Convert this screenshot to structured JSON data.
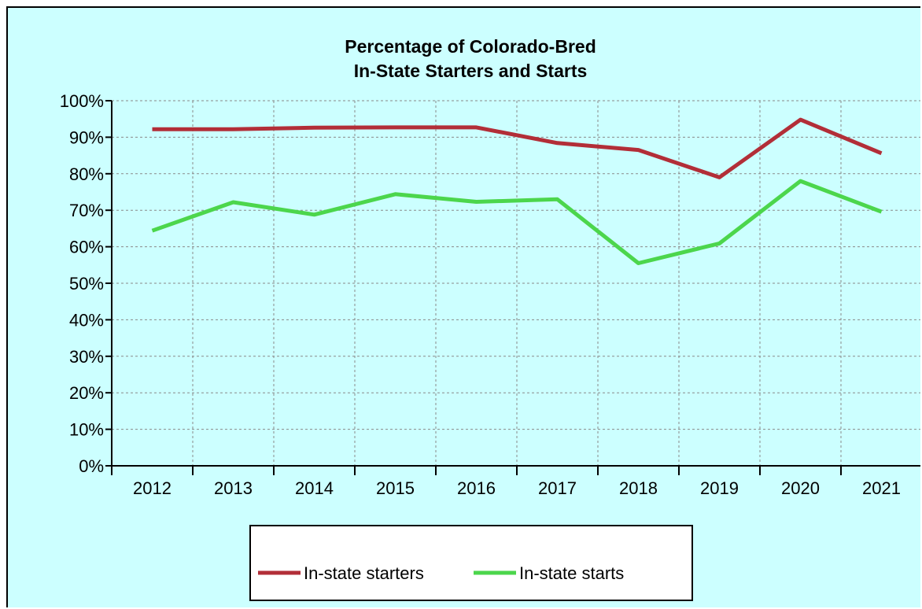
{
  "chart_data": {
    "type": "line",
    "title": [
      "Percentage of Colorado-Bred",
      "In-State Starters and Starts"
    ],
    "x": [
      "2012",
      "2013",
      "2014",
      "2015",
      "2016",
      "2017",
      "2018",
      "2019",
      "2020",
      "2021"
    ],
    "ylim": [
      0,
      100
    ],
    "y_ticks": [
      "0%",
      "10%",
      "20%",
      "30%",
      "40%",
      "50%",
      "60%",
      "70%",
      "80%",
      "90%",
      "100%"
    ],
    "grid": true,
    "legend_position": "bottom",
    "series": [
      {
        "name": "In-state starters",
        "color": "#b22e38",
        "values": [
          92.2,
          92.2,
          92.6,
          92.7,
          92.7,
          88.4,
          86.5,
          79.0,
          94.8,
          85.6
        ]
      },
      {
        "name": "In-state starts",
        "color": "#4cd64c",
        "values": [
          64.4,
          72.2,
          68.8,
          74.4,
          72.3,
          73.0,
          55.5,
          60.9,
          78.0,
          69.6
        ]
      }
    ]
  }
}
